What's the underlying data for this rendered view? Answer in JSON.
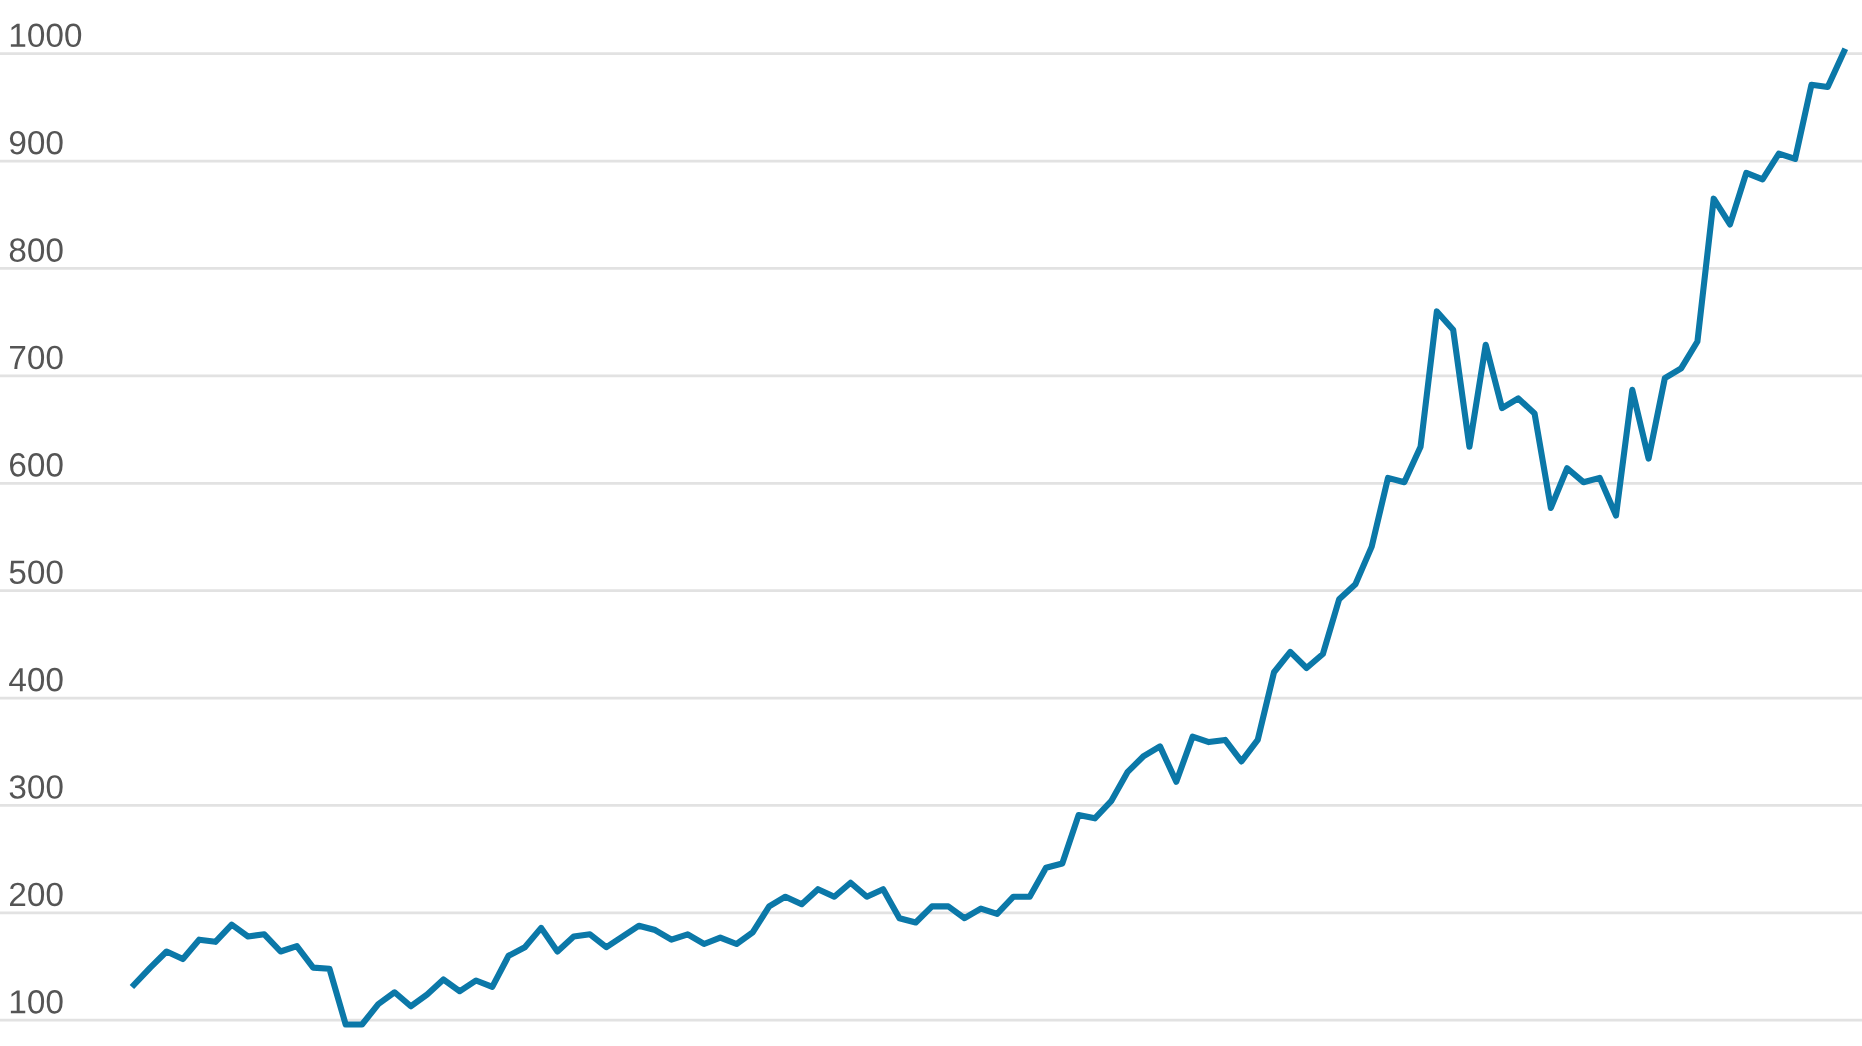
{
  "chart_data": {
    "type": "line",
    "color": "#0b78a8",
    "grid": "y",
    "line_style": "solid",
    "ylim": [
      76,
      1050
    ],
    "yticks": [
      100,
      200,
      300,
      400,
      500,
      600,
      700,
      800,
      900,
      1000
    ],
    "tick_labels": "y",
    "categories": [
      null,
      null,
      null,
      null,
      null,
      null,
      null,
      null,
      null,
      null,
      null,
      null,
      null,
      null,
      null,
      null,
      null,
      null,
      null,
      null,
      null,
      null,
      null,
      null,
      null,
      null,
      null,
      null,
      null,
      null,
      null,
      null,
      null,
      null,
      null,
      null,
      null,
      null,
      null,
      null,
      null,
      null,
      null,
      null,
      null,
      null,
      null,
      null,
      null,
      null,
      null,
      null,
      null,
      null,
      null,
      null,
      null,
      null,
      null,
      null,
      null,
      null,
      null,
      null,
      null,
      null,
      null,
      null,
      null,
      null,
      null,
      null,
      null,
      null,
      null,
      null,
      null,
      null,
      null,
      null,
      null,
      null,
      null,
      null,
      null,
      null,
      null,
      null,
      null,
      null,
      null,
      null,
      null,
      null,
      null,
      null,
      null,
      null,
      null,
      null,
      null,
      null,
      null,
      null,
      null,
      null
    ],
    "values": [
      133,
      149,
      164,
      157,
      175,
      173,
      189,
      178,
      180,
      164,
      169,
      149,
      148,
      96,
      96,
      115,
      126,
      113,
      124,
      138,
      127,
      137,
      131,
      160,
      168,
      186,
      164,
      178,
      180,
      168,
      178,
      188,
      184,
      175,
      180,
      171,
      177,
      171,
      182,
      206,
      215,
      208,
      222,
      215,
      228,
      215,
      222,
      195,
      191,
      206,
      206,
      195,
      204,
      199,
      215,
      215,
      242,
      246,
      291,
      288,
      304,
      331,
      346,
      355,
      322,
      364,
      359,
      361,
      341,
      361,
      424,
      443,
      428,
      441,
      492,
      506,
      541,
      605,
      601,
      634,
      760,
      743,
      634,
      729,
      670,
      679,
      665,
      577,
      614,
      601,
      605,
      570,
      687,
      623,
      698,
      707,
      732,
      865,
      841,
      889,
      883,
      907,
      902,
      971,
      969,
      1002
    ]
  }
}
